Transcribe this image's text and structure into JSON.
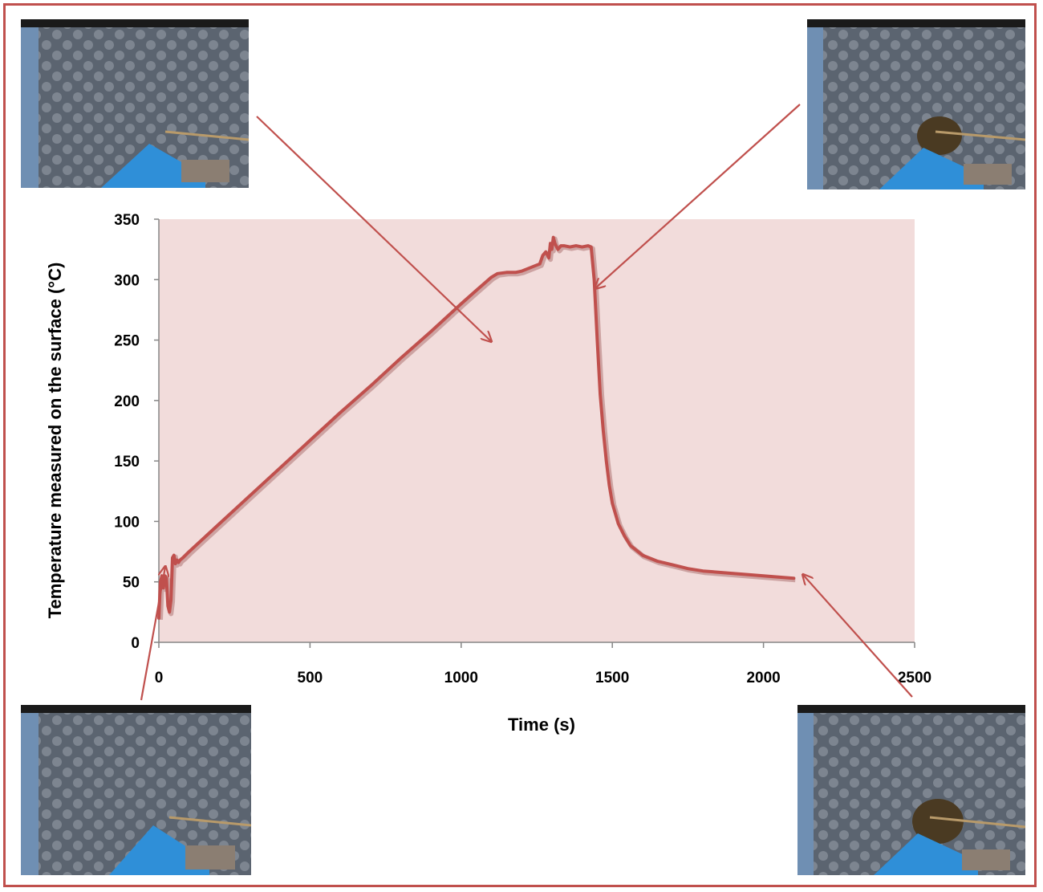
{
  "chart_data": {
    "type": "line",
    "title": "",
    "xlabel": "Time (s)",
    "ylabel": "Temperature measured on the surface (°C)",
    "xlim": [
      0,
      2500
    ],
    "ylim": [
      0,
      350
    ],
    "x_ticks": [
      0,
      500,
      1000,
      1500,
      2000,
      2500
    ],
    "y_ticks": [
      0,
      50,
      100,
      150,
      200,
      250,
      300,
      350
    ],
    "grid": false,
    "legend": "none",
    "plot_background": "#f2dcdb",
    "series": [
      {
        "color": "#c0504d",
        "x": [
          0,
          5,
          10,
          15,
          20,
          25,
          30,
          35,
          40,
          45,
          50,
          55,
          60,
          65,
          70,
          80,
          100,
          200,
          300,
          400,
          500,
          600,
          700,
          800,
          900,
          1000,
          1050,
          1100,
          1120,
          1150,
          1180,
          1200,
          1230,
          1260,
          1270,
          1280,
          1290,
          1295,
          1300,
          1305,
          1310,
          1320,
          1330,
          1340,
          1360,
          1380,
          1400,
          1420,
          1430,
          1440,
          1450,
          1460,
          1470,
          1480,
          1490,
          1500,
          1520,
          1540,
          1560,
          1600,
          1650,
          1700,
          1750,
          1800,
          1850,
          1900,
          1950,
          2000,
          2050,
          2100
        ],
        "y": [
          20,
          50,
          55,
          45,
          55,
          53,
          30,
          25,
          35,
          70,
          72,
          65,
          68,
          66,
          68,
          70,
          75,
          98,
          121,
          144,
          167,
          190,
          212,
          235,
          257,
          280,
          291,
          302,
          305,
          306,
          306,
          307,
          310,
          313,
          320,
          323,
          318,
          330,
          325,
          335,
          330,
          325,
          328,
          328,
          327,
          328,
          327,
          328,
          327,
          300,
          250,
          205,
          175,
          150,
          130,
          115,
          98,
          88,
          80,
          72,
          67,
          64,
          61,
          59,
          58,
          57,
          56,
          55,
          54,
          53
        ]
      }
    ],
    "annotations": [
      "arrow-to-start",
      "arrow-to-plateau-begin",
      "arrow-to-peak",
      "arrow-to-end"
    ]
  }
}
